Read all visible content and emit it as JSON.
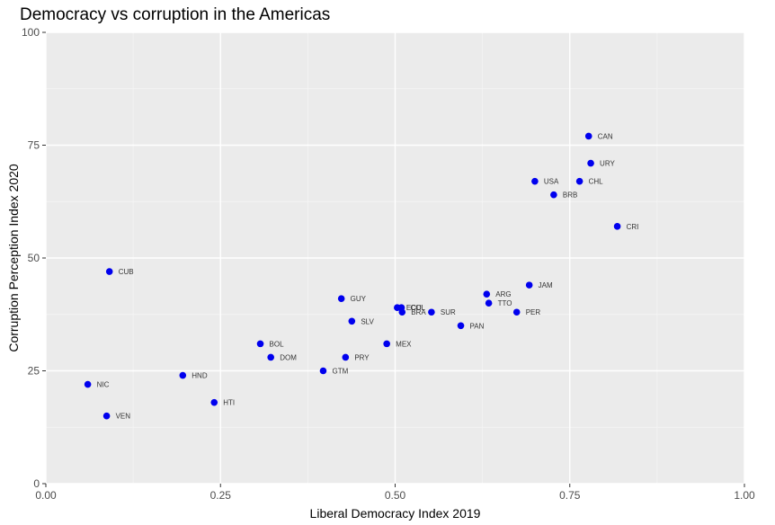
{
  "chart_data": {
    "type": "scatter",
    "title": "Democracy vs corruption in the Americas",
    "xlabel": "Liberal Democracy Index 2019",
    "ylabel": "Corruption Perception Index 2020",
    "xlim": [
      0,
      1
    ],
    "ylim": [
      0,
      100
    ],
    "x_ticks": [
      "0.00",
      "0.25",
      "0.50",
      "0.75",
      "1.00"
    ],
    "y_ticks": [
      "0",
      "25",
      "50",
      "75",
      "100"
    ],
    "x_tick_values": [
      0,
      0.25,
      0.5,
      0.75,
      1.0
    ],
    "y_tick_values": [
      0,
      25,
      50,
      75,
      100
    ],
    "grid": true,
    "point_color": "#0000ee",
    "panel_color": "#ebebeb",
    "points": [
      {
        "label": "CAN",
        "x": 0.777,
        "y": 77
      },
      {
        "label": "URY",
        "x": 0.78,
        "y": 71
      },
      {
        "label": "USA",
        "x": 0.7,
        "y": 67
      },
      {
        "label": "CHL",
        "x": 0.764,
        "y": 67
      },
      {
        "label": "BRB",
        "x": 0.727,
        "y": 64
      },
      {
        "label": "CRI",
        "x": 0.818,
        "y": 57
      },
      {
        "label": "CUB",
        "x": 0.091,
        "y": 47
      },
      {
        "label": "JAM",
        "x": 0.692,
        "y": 44
      },
      {
        "label": "ARG",
        "x": 0.631,
        "y": 42
      },
      {
        "label": "GUY",
        "x": 0.423,
        "y": 41
      },
      {
        "label": "TTO",
        "x": 0.634,
        "y": 40
      },
      {
        "label": "ECU",
        "x": 0.503,
        "y": 39
      },
      {
        "label": "COL",
        "x": 0.509,
        "y": 39
      },
      {
        "label": "BRA",
        "x": 0.51,
        "y": 38
      },
      {
        "label": "SUR",
        "x": 0.552,
        "y": 38
      },
      {
        "label": "PER",
        "x": 0.674,
        "y": 38
      },
      {
        "label": "SLV",
        "x": 0.438,
        "y": 36
      },
      {
        "label": "PAN",
        "x": 0.594,
        "y": 35
      },
      {
        "label": "BOL",
        "x": 0.307,
        "y": 31
      },
      {
        "label": "MEX",
        "x": 0.488,
        "y": 31
      },
      {
        "label": "DOM",
        "x": 0.322,
        "y": 28
      },
      {
        "label": "PRY",
        "x": 0.429,
        "y": 28
      },
      {
        "label": "GTM",
        "x": 0.397,
        "y": 25
      },
      {
        "label": "HND",
        "x": 0.196,
        "y": 24
      },
      {
        "label": "NIC",
        "x": 0.06,
        "y": 22
      },
      {
        "label": "HTI",
        "x": 0.241,
        "y": 18
      },
      {
        "label": "VEN",
        "x": 0.087,
        "y": 15
      }
    ]
  }
}
